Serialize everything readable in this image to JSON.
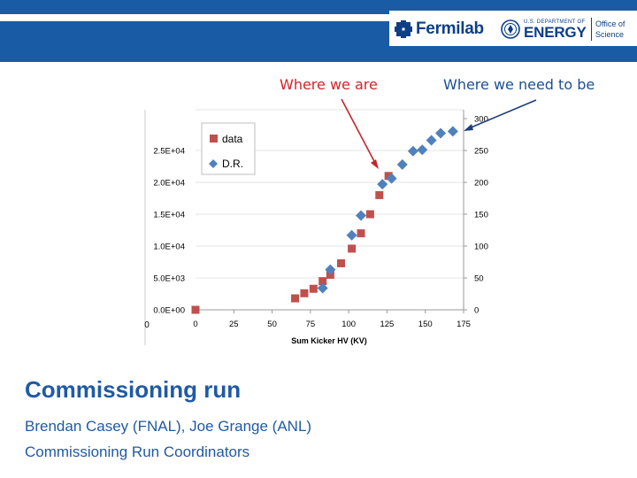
{
  "header": {
    "lab_name": "Fermilab",
    "doe_small": "U.S. DEPARTMENT OF",
    "doe_big": "ENERGY",
    "office_line1": "Office of",
    "office_line2": "Science",
    "colors": {
      "bar": "#1a5ba6",
      "logo": "#0d3f86"
    }
  },
  "annotations": {
    "where_we_are": "Where we are",
    "where_we_need_to_be": "Where we need to be",
    "red_color": "#d3232a",
    "blue_color": "#1c4f95"
  },
  "chart_data": {
    "type": "scatter",
    "xlabel": "Sum Kicker HV (KV)",
    "x_ticks": [
      "0",
      "25",
      "50",
      "75",
      "100",
      "125",
      "150",
      "175"
    ],
    "xlim": [
      0,
      175
    ],
    "y_left_ticks": [
      "0.0E+00",
      "5.0E+03",
      "1.0E+04",
      "1.5E+04",
      "2.0E+04",
      "2.5E+04"
    ],
    "ylim_left": [
      0,
      30000
    ],
    "y_right_ticks": [
      "0",
      "50",
      "100",
      "150",
      "200",
      "250",
      "300"
    ],
    "ylim_right": [
      0,
      300
    ],
    "legend": [
      "data",
      "D.R."
    ],
    "stray_zero_label": "0",
    "series": [
      {
        "name": "data",
        "color": "#c0504d",
        "marker": "square",
        "axis": "left",
        "points": [
          [
            0,
            0
          ],
          [
            65,
            1800
          ],
          [
            71,
            2600
          ],
          [
            77,
            3300
          ],
          [
            83,
            4500
          ],
          [
            88,
            5500
          ],
          [
            95,
            7300
          ],
          [
            102,
            9600
          ],
          [
            108,
            12000
          ],
          [
            114,
            15000
          ],
          [
            120,
            18000
          ],
          [
            126,
            21000
          ]
        ]
      },
      {
        "name": "D.R.",
        "color": "#4f81bd",
        "marker": "diamond",
        "axis": "right",
        "points": [
          [
            83,
            34
          ],
          [
            88,
            63
          ],
          [
            102,
            117
          ],
          [
            108,
            148
          ],
          [
            122,
            197
          ],
          [
            128,
            206
          ],
          [
            135,
            228
          ],
          [
            142,
            249
          ],
          [
            148,
            251
          ],
          [
            154,
            266
          ],
          [
            160,
            277
          ],
          [
            168,
            280
          ]
        ]
      }
    ]
  },
  "footer": {
    "title": "Commissioning run",
    "authors": "Brendan Casey (FNAL), Joe Grange (ANL)",
    "role": "Commissioning Run Coordinators"
  }
}
